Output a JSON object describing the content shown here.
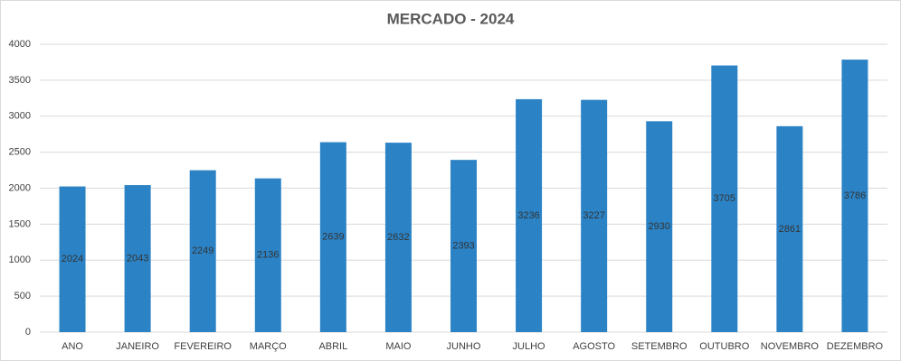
{
  "chart_data": {
    "type": "bar",
    "title": "MERCADO - 2024",
    "categories": [
      "ANO",
      "JANEIRO",
      "FEVEREIRO",
      "MARÇO",
      "ABRIL",
      "MAIO",
      "JUNHO",
      "JULHO",
      "AGOSTO",
      "SETEMBRO",
      "OUTUBRO",
      "NOVEMBRO",
      "DEZEMBRO"
    ],
    "values": [
      2024,
      2043,
      2249,
      2136,
      2639,
      2632,
      2393,
      3236,
      3227,
      2930,
      3705,
      2861,
      3786
    ],
    "color": "#2b83c6",
    "ylim": [
      0,
      4000
    ],
    "yticks": [
      0,
      500,
      1000,
      1500,
      2000,
      2500,
      3000,
      3500,
      4000
    ],
    "grid": true
  }
}
